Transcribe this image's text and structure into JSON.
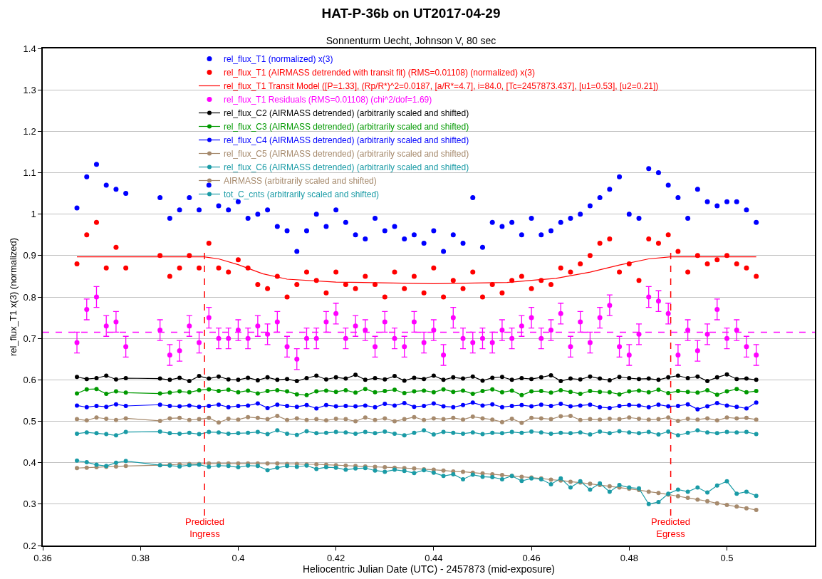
{
  "chart_data": {
    "type": "scatter",
    "title": "HAT-P-36b on UT2017-04-29",
    "subtitle": "Sonnenturm Uecht, Johnson V, 80 sec",
    "xlabel": "Heliocentric Julian Date (UTC) - 2457873 (mid-exposure)",
    "ylabel": "rel_flux_T1 x(3) (normalized)",
    "x": [
      0.367,
      0.369,
      0.371,
      0.373,
      0.375,
      0.377,
      0.384,
      0.386,
      0.388,
      0.39,
      0.392,
      0.394,
      0.396,
      0.398,
      0.4,
      0.402,
      0.404,
      0.406,
      0.408,
      0.41,
      0.412,
      0.414,
      0.416,
      0.418,
      0.42,
      0.422,
      0.424,
      0.426,
      0.428,
      0.43,
      0.432,
      0.434,
      0.436,
      0.438,
      0.44,
      0.442,
      0.444,
      0.446,
      0.448,
      0.45,
      0.452,
      0.454,
      0.456,
      0.458,
      0.46,
      0.462,
      0.464,
      0.466,
      0.468,
      0.47,
      0.472,
      0.474,
      0.476,
      0.478,
      0.48,
      0.482,
      0.484,
      0.486,
      0.488,
      0.49,
      0.492,
      0.494,
      0.496,
      0.498,
      0.5,
      0.502,
      0.504,
      0.506
    ],
    "xlim": [
      0.36,
      0.518
    ],
    "xticks": [
      0.36,
      0.38,
      0.4,
      0.42,
      0.44,
      0.46,
      0.48,
      0.5
    ],
    "ylim": [
      0.2,
      1.4
    ],
    "yticks": [
      0.2,
      0.3,
      0.4,
      0.5,
      0.6,
      0.7,
      0.8,
      0.9,
      1.0,
      1.1,
      1.2,
      1.3,
      1.4
    ],
    "grid": "y",
    "legend": "top",
    "marker": "circle",
    "series": [
      {
        "name": "rel_flux_T1 (normalized) x(3)",
        "color": "#0000ff",
        "values": [
          1.015,
          1.09,
          1.12,
          1.07,
          1.06,
          1.05,
          1.04,
          0.99,
          1.01,
          1.04,
          1.01,
          1.07,
          1.02,
          1.01,
          1.03,
          0.99,
          1.0,
          1.01,
          0.97,
          0.96,
          0.91,
          0.96,
          1.0,
          0.97,
          1.01,
          0.98,
          0.95,
          0.94,
          0.99,
          0.96,
          0.97,
          0.94,
          0.95,
          0.93,
          0.96,
          0.91,
          0.95,
          0.93,
          1.04,
          0.92,
          0.98,
          0.97,
          0.98,
          0.95,
          0.99,
          0.95,
          0.96,
          0.98,
          0.99,
          1.0,
          1.02,
          1.04,
          1.06,
          1.09,
          1.0,
          0.99,
          1.11,
          1.1,
          1.07,
          1.04,
          0.99,
          1.06,
          1.03,
          1.02,
          1.03,
          1.03,
          1.01,
          0.98
        ]
      },
      {
        "name": "rel_flux_T1 (AIRMASS detrended with transit fit) (RMS=0.01108) (normalized) x(3)",
        "color": "#ff0000",
        "values": [
          0.88,
          0.95,
          0.98,
          0.87,
          0.92,
          0.87,
          0.9,
          0.85,
          0.87,
          0.9,
          0.87,
          0.93,
          0.87,
          0.86,
          0.89,
          0.87,
          0.83,
          0.82,
          0.85,
          0.8,
          0.83,
          0.86,
          0.84,
          0.81,
          0.86,
          0.83,
          0.82,
          0.85,
          0.83,
          0.8,
          0.86,
          0.82,
          0.85,
          0.81,
          0.87,
          0.8,
          0.84,
          0.82,
          0.86,
          0.8,
          0.83,
          0.81,
          0.84,
          0.85,
          0.82,
          0.84,
          0.83,
          0.87,
          0.86,
          0.88,
          0.9,
          0.93,
          0.94,
          0.86,
          0.88,
          0.84,
          0.94,
          0.93,
          0.95,
          0.91,
          0.86,
          0.9,
          0.88,
          0.89,
          0.9,
          0.88,
          0.87,
          0.85
        ]
      },
      {
        "name": "rel_flux_T1 Transit Model ([P=1.33], (Rp/R*)^2=0.0187, [a/R*=4.7], i=84.0, [Tc=2457873.437], [u1=0.53], [u2=0.21])",
        "type": "line",
        "marker": "none",
        "color": "#ff0000",
        "x": [
          0.367,
          0.393,
          0.396,
          0.4,
          0.405,
          0.41,
          0.42,
          0.44,
          0.455,
          0.465,
          0.472,
          0.478,
          0.484,
          0.4885,
          0.506
        ],
        "values": [
          0.897,
          0.897,
          0.892,
          0.878,
          0.856,
          0.843,
          0.836,
          0.832,
          0.835,
          0.845,
          0.86,
          0.877,
          0.892,
          0.897,
          0.897
        ]
      },
      {
        "name": "rel_flux_T1 Residuals (RMS=0.01108) (chi^2/dof=1.69)",
        "color": "#ff00ff",
        "values": [
          0.69,
          0.77,
          0.8,
          0.73,
          0.74,
          0.68,
          0.72,
          0.66,
          0.67,
          0.73,
          0.69,
          0.75,
          0.7,
          0.7,
          0.72,
          0.7,
          0.73,
          0.71,
          0.74,
          0.68,
          0.65,
          0.7,
          0.7,
          0.74,
          0.76,
          0.7,
          0.73,
          0.72,
          0.68,
          0.74,
          0.7,
          0.68,
          0.74,
          0.69,
          0.72,
          0.66,
          0.75,
          0.7,
          0.69,
          0.7,
          0.69,
          0.72,
          0.7,
          0.73,
          0.75,
          0.7,
          0.72,
          0.76,
          0.68,
          0.74,
          0.69,
          0.75,
          0.78,
          0.68,
          0.66,
          0.71,
          0.8,
          0.79,
          0.76,
          0.66,
          0.72,
          0.67,
          0.71,
          0.77,
          0.7,
          0.72,
          0.68,
          0.66
        ],
        "errors": [
          0.025,
          0.025,
          0.025,
          0.025,
          0.025,
          0.025,
          0.025,
          0.025,
          0.025,
          0.025,
          0.025,
          0.025,
          0.025,
          0.025,
          0.025,
          0.025,
          0.025,
          0.025,
          0.025,
          0.025,
          0.025,
          0.025,
          0.025,
          0.025,
          0.025,
          0.025,
          0.025,
          0.025,
          0.025,
          0.025,
          0.025,
          0.025,
          0.025,
          0.025,
          0.025,
          0.025,
          0.025,
          0.025,
          0.025,
          0.025,
          0.025,
          0.025,
          0.025,
          0.025,
          0.025,
          0.025,
          0.025,
          0.025,
          0.025,
          0.025,
          0.025,
          0.025,
          0.025,
          0.025,
          0.025,
          0.025,
          0.025,
          0.025,
          0.025,
          0.025,
          0.025,
          0.025,
          0.025,
          0.025,
          0.025,
          0.025,
          0.025,
          0.025
        ]
      },
      {
        "name": "rel_flux_C2 (AIRMASS detrended) (arbitrarily scaled and shifted)",
        "type": "line",
        "color": "#000000",
        "values": [
          0.607,
          0.602,
          0.604,
          0.61,
          0.601,
          0.604,
          0.603,
          0.6,
          0.605,
          0.597,
          0.609,
          0.603,
          0.608,
          0.601,
          0.6,
          0.605,
          0.599,
          0.606,
          0.6,
          0.602,
          0.597,
          0.604,
          0.61,
          0.601,
          0.606,
          0.603,
          0.612,
          0.6,
          0.604,
          0.601,
          0.609,
          0.598,
          0.605,
          0.602,
          0.61,
          0.6,
          0.606,
          0.603,
          0.608,
          0.598,
          0.605,
          0.607,
          0.6,
          0.604,
          0.602,
          0.606,
          0.611,
          0.597,
          0.603,
          0.601,
          0.608,
          0.603,
          0.599,
          0.607,
          0.604,
          0.602,
          0.603,
          0.6,
          0.606,
          0.61,
          0.604,
          0.608,
          0.597,
          0.606,
          0.613,
          0.602,
          0.603,
          0.6
        ]
      },
      {
        "name": "rel_flux_C3 (AIRMASS detrended) (arbitrarily scaled and shifted)",
        "type": "line",
        "color": "#009900",
        "values": [
          0.567,
          0.577,
          0.578,
          0.566,
          0.572,
          0.569,
          0.567,
          0.569,
          0.572,
          0.57,
          0.575,
          0.577,
          0.573,
          0.576,
          0.57,
          0.574,
          0.567,
          0.573,
          0.575,
          0.572,
          0.565,
          0.563,
          0.572,
          0.574,
          0.571,
          0.575,
          0.569,
          0.578,
          0.57,
          0.573,
          0.576,
          0.568,
          0.572,
          0.574,
          0.57,
          0.577,
          0.571,
          0.574,
          0.566,
          0.573,
          0.577,
          0.57,
          0.574,
          0.563,
          0.572,
          0.573,
          0.569,
          0.575,
          0.571,
          0.566,
          0.573,
          0.571,
          0.57,
          0.565,
          0.572,
          0.574,
          0.57,
          0.576,
          0.568,
          0.573,
          0.571,
          0.569,
          0.575,
          0.564,
          0.572,
          0.578,
          0.57,
          0.573
        ]
      },
      {
        "name": "rel_flux_C4 (AIRMASS detrended) (arbitrarily scaled and shifted)",
        "type": "line",
        "color": "#0000ff",
        "values": [
          0.538,
          0.534,
          0.537,
          0.535,
          0.541,
          0.537,
          0.54,
          0.537,
          0.536,
          0.538,
          0.535,
          0.537,
          0.54,
          0.534,
          0.537,
          0.538,
          0.543,
          0.532,
          0.54,
          0.537,
          0.535,
          0.539,
          0.531,
          0.539,
          0.536,
          0.537,
          0.536,
          0.538,
          0.534,
          0.542,
          0.538,
          0.544,
          0.535,
          0.537,
          0.543,
          0.536,
          0.534,
          0.539,
          0.545,
          0.538,
          0.541,
          0.534,
          0.537,
          0.539,
          0.536,
          0.54,
          0.537,
          0.542,
          0.536,
          0.538,
          0.54,
          0.534,
          0.532,
          0.537,
          0.539,
          0.538,
          0.534,
          0.54,
          0.536,
          0.537,
          0.541,
          0.529,
          0.536,
          0.544,
          0.538,
          0.535,
          0.531,
          0.545
        ]
      },
      {
        "name": "rel_flux_C5 (AIRMASS detrended) (arbitrarily scaled and shifted)",
        "type": "line",
        "color": "#a68a6d",
        "values": [
          0.505,
          0.502,
          0.509,
          0.506,
          0.503,
          0.507,
          0.501,
          0.507,
          0.508,
          0.503,
          0.505,
          0.508,
          0.497,
          0.506,
          0.504,
          0.51,
          0.508,
          0.505,
          0.513,
          0.503,
          0.507,
          0.503,
          0.505,
          0.502,
          0.506,
          0.505,
          0.5,
          0.509,
          0.503,
          0.507,
          0.5,
          0.505,
          0.51,
          0.503,
          0.507,
          0.505,
          0.508,
          0.504,
          0.511,
          0.507,
          0.504,
          0.498,
          0.506,
          0.496,
          0.508,
          0.507,
          0.505,
          0.512,
          0.513,
          0.503,
          0.505,
          0.504,
          0.506,
          0.505,
          0.509,
          0.506,
          0.504,
          0.505,
          0.509,
          0.501,
          0.506,
          0.504,
          0.507,
          0.502,
          0.509,
          0.507,
          0.508,
          0.504
        ]
      },
      {
        "name": "rel_flux_C6 (AIRMASS detrended) (arbitrarily scaled and shifted)",
        "type": "line",
        "color": "#1a9ba6",
        "values": [
          0.47,
          0.473,
          0.471,
          0.469,
          0.466,
          0.474,
          0.475,
          0.471,
          0.47,
          0.472,
          0.469,
          0.474,
          0.473,
          0.47,
          0.471,
          0.472,
          0.474,
          0.469,
          0.478,
          0.47,
          0.467,
          0.476,
          0.471,
          0.472,
          0.474,
          0.473,
          0.47,
          0.474,
          0.471,
          0.475,
          0.47,
          0.466,
          0.472,
          0.478,
          0.468,
          0.474,
          0.472,
          0.47,
          0.473,
          0.469,
          0.472,
          0.471,
          0.474,
          0.472,
          0.475,
          0.473,
          0.47,
          0.472,
          0.471,
          0.473,
          0.468,
          0.475,
          0.471,
          0.476,
          0.473,
          0.471,
          0.474,
          0.468,
          0.475,
          0.466,
          0.472,
          0.478,
          0.473,
          0.471,
          0.474,
          0.473,
          0.474,
          0.469
        ]
      },
      {
        "name": "AIRMASS (arbitrarily scaled and shifted)",
        "type": "line",
        "color": "#a68a6d",
        "values": [
          0.387,
          0.388,
          0.389,
          0.39,
          0.391,
          0.392,
          0.394,
          0.395,
          0.396,
          0.397,
          0.397,
          0.398,
          0.398,
          0.398,
          0.398,
          0.398,
          0.398,
          0.398,
          0.398,
          0.397,
          0.397,
          0.396,
          0.396,
          0.395,
          0.394,
          0.393,
          0.392,
          0.391,
          0.39,
          0.389,
          0.388,
          0.387,
          0.386,
          0.384,
          0.383,
          0.381,
          0.379,
          0.378,
          0.376,
          0.374,
          0.372,
          0.37,
          0.368,
          0.366,
          0.364,
          0.362,
          0.359,
          0.357,
          0.354,
          0.352,
          0.349,
          0.346,
          0.343,
          0.34,
          0.337,
          0.334,
          0.33,
          0.327,
          0.323,
          0.319,
          0.315,
          0.311,
          0.307,
          0.302,
          0.298,
          0.294,
          0.29,
          0.286
        ]
      },
      {
        "name": "tot_C_cnts (arbitrarily scaled and shifted)",
        "type": "line",
        "color": "#1a9ba6",
        "values": [
          0.405,
          0.401,
          0.395,
          0.392,
          0.4,
          0.404,
          0.394,
          0.393,
          0.391,
          0.394,
          0.395,
          0.39,
          0.393,
          0.392,
          0.389,
          0.393,
          0.392,
          0.382,
          0.388,
          0.392,
          0.39,
          0.393,
          0.385,
          0.389,
          0.388,
          0.383,
          0.386,
          0.387,
          0.381,
          0.378,
          0.383,
          0.38,
          0.375,
          0.382,
          0.376,
          0.368,
          0.372,
          0.36,
          0.371,
          0.366,
          0.365,
          0.36,
          0.368,
          0.356,
          0.362,
          0.36,
          0.348,
          0.362,
          0.34,
          0.355,
          0.335,
          0.35,
          0.33,
          0.346,
          0.34,
          0.338,
          0.3,
          0.305,
          0.325,
          0.335,
          0.33,
          0.34,
          0.328,
          0.345,
          0.355,
          0.325,
          0.33,
          0.32
        ]
      }
    ],
    "ref_lines": [
      {
        "axis": "x",
        "value": 0.3931,
        "label": "Predicted\nIngress",
        "color": "#ff0000",
        "line_style": "dashed"
      },
      {
        "axis": "x",
        "value": 0.4885,
        "label": "Predicted\nEgress",
        "color": "#ff0000",
        "line_style": "dashed"
      },
      {
        "axis": "y",
        "value": 0.715,
        "color": "#ff00ff",
        "line_style": "dashed"
      }
    ]
  }
}
